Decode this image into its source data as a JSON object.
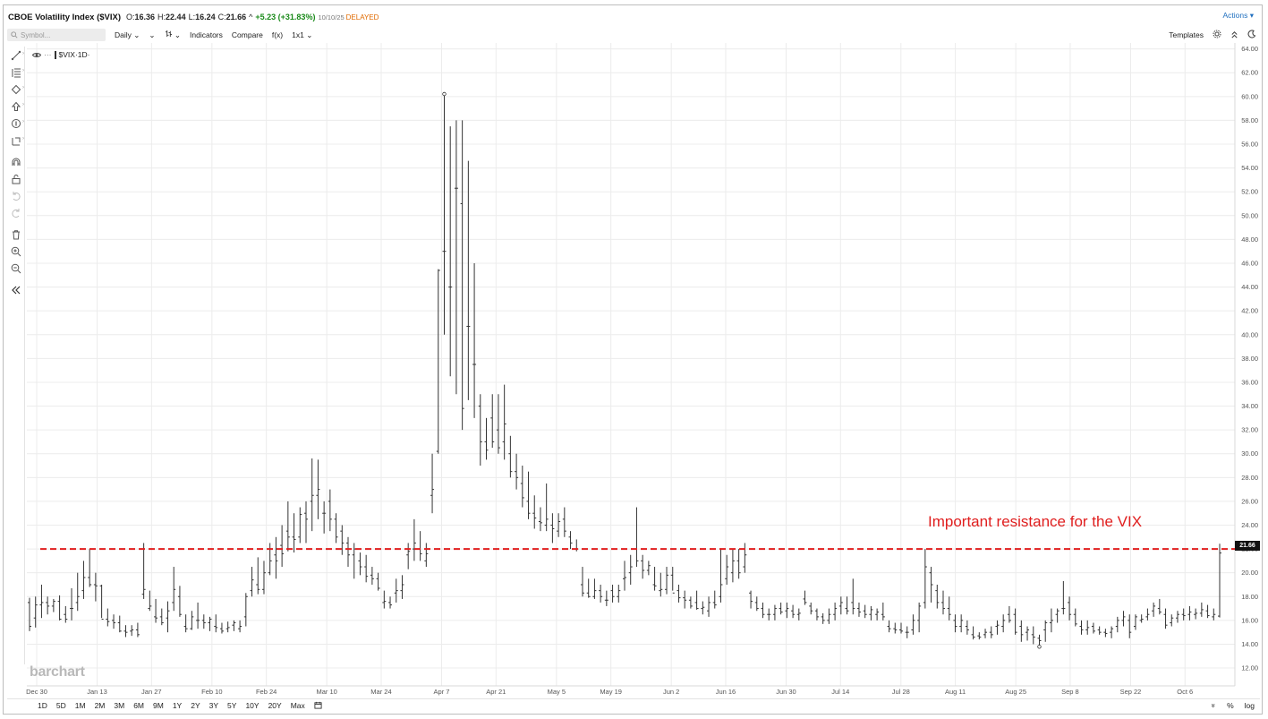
{
  "header": {
    "title": "CBOE Volatility Index ($VIX)",
    "open_label": "O:",
    "open": "16.36",
    "high_label": "H:",
    "high": "22.44",
    "low_label": "L:",
    "low": "16.24",
    "close_label": "C:",
    "close": "21.66",
    "caret": "^",
    "change": "+5.23 (+31.83%)",
    "date": "10/10/25",
    "status": "DELAYED",
    "actions_label": "Actions ▾"
  },
  "toolbar": {
    "search_placeholder": "Symbol...",
    "interval": "Daily",
    "interval_caret": "⌄",
    "chart_type_caret": "⌄",
    "bar_type_caret": "⌄",
    "indicators": "Indicators",
    "compare": "Compare",
    "fx": "f(x)",
    "layout": "1x1",
    "layout_caret": "⌄",
    "templates": "Templates"
  },
  "chart_label": {
    "symbol": "$VIX",
    "interval": "·1D·"
  },
  "watermark": "barchart",
  "annotation": "Important resistance for the VIX",
  "last_price_tag": "21.66",
  "bottombar": {
    "ranges": [
      "1D",
      "5D",
      "1M",
      "2M",
      "3M",
      "6M",
      "9M",
      "1Y",
      "2Y",
      "3Y",
      "5Y",
      "10Y",
      "20Y",
      "Max"
    ],
    "percent": "%",
    "log": "log",
    "collapse": "»"
  },
  "colors": {
    "bars": "#333333",
    "grid": "#ececec",
    "resistance": "#e01e1e",
    "change": "#1a8a1a",
    "delayed": "#e06a00",
    "accent": "#1f6fbf"
  },
  "icons": [
    "eye-icon",
    "search-icon",
    "gear-icon",
    "moon-icon",
    "calendar-icon",
    "magnet-icon",
    "lock-icon",
    "trash-icon",
    "zoom-in-icon",
    "zoom-out-icon",
    "undo-icon",
    "redo-icon"
  ],
  "chart_data": {
    "type": "bar",
    "style": "OHLC",
    "symbol": "$VIX",
    "y_ticks": [
      "12.00",
      "14.00",
      "16.00",
      "18.00",
      "20.00",
      "22.00",
      "24.00",
      "26.00",
      "28.00",
      "30.00",
      "32.00",
      "34.00",
      "36.00",
      "38.00",
      "40.00",
      "42.00",
      "44.00",
      "46.00",
      "48.00",
      "50.00",
      "52.00",
      "54.00",
      "56.00",
      "58.00",
      "60.00",
      "62.00",
      "64.00"
    ],
    "ylim": [
      10.5,
      64.5
    ],
    "x_ticks": [
      "Dec 30",
      "Jan 13",
      "Jan 27",
      "Feb 10",
      "Feb 24",
      "Mar 10",
      "Mar 24",
      "Apr 7",
      "Apr 21",
      "May 5",
      "May 19",
      "Jun 2",
      "Jun 16",
      "Jun 30",
      "Jul 14",
      "Jul 28",
      "Aug 11",
      "Aug 25",
      "Sep 8",
      "Sep 22",
      "Oct 6"
    ],
    "resistance_level": 22.0,
    "grid": true,
    "ohlc": [
      [
        17.5,
        17.9,
        15.1,
        15.5
      ],
      [
        16.2,
        18.0,
        15.4,
        17.3
      ],
      [
        17.3,
        19.0,
        16.2,
        17.5
      ],
      [
        17.5,
        18.0,
        16.5,
        17.2
      ],
      [
        17.2,
        17.8,
        16.7,
        17.6
      ],
      [
        17.6,
        18.1,
        16.0,
        16.1
      ],
      [
        16.5,
        17.2,
        15.8,
        16.1
      ],
      [
        17.0,
        18.7,
        16.0,
        17.0
      ],
      [
        17.5,
        20.0,
        16.8,
        18.0
      ],
      [
        18.5,
        21.0,
        17.8,
        19.6
      ],
      [
        19.6,
        22.0,
        18.8,
        19.0
      ],
      [
        19.0,
        20.0,
        17.6,
        18.9
      ],
      [
        18.9,
        19.0,
        16.2,
        16.1
      ],
      [
        16.1,
        17.0,
        15.5,
        15.9
      ],
      [
        16.0,
        16.5,
        15.3,
        15.8
      ],
      [
        15.8,
        16.4,
        15.0,
        15.1
      ],
      [
        15.1,
        15.6,
        14.6,
        15.0
      ],
      [
        15.1,
        15.6,
        14.7,
        15.2
      ],
      [
        15.2,
        15.8,
        14.6,
        14.8
      ],
      [
        18.2,
        22.5,
        17.8,
        18.6
      ],
      [
        17.0,
        18.5,
        16.8,
        17.2
      ],
      [
        16.3,
        17.8,
        15.8,
        16.2
      ],
      [
        16.3,
        17.0,
        15.6,
        15.8
      ],
      [
        16.2,
        17.6,
        15.0,
        16.8
      ],
      [
        17.5,
        20.5,
        16.8,
        18.6
      ],
      [
        18.0,
        18.9,
        16.3,
        16.5
      ],
      [
        15.5,
        16.5,
        15.0,
        15.3
      ],
      [
        15.3,
        16.8,
        15.2,
        16.3
      ],
      [
        16.0,
        17.5,
        15.3,
        16.0
      ],
      [
        16.0,
        16.5,
        15.3,
        15.8
      ],
      [
        15.8,
        16.3,
        15.1,
        16.1
      ],
      [
        15.5,
        16.5,
        15.0,
        15.4
      ],
      [
        15.3,
        15.8,
        14.9,
        15.1
      ],
      [
        15.3,
        15.9,
        15.0,
        15.4
      ],
      [
        15.6,
        16.0,
        15.1,
        15.8
      ],
      [
        15.3,
        16.0,
        15.0,
        15.5
      ],
      [
        16.3,
        18.3,
        15.5,
        18.0
      ],
      [
        18.5,
        20.5,
        18.0,
        19.4
      ],
      [
        19.0,
        21.3,
        18.2,
        18.6
      ],
      [
        18.6,
        21.0,
        18.2,
        20.0
      ],
      [
        20.0,
        22.5,
        19.8,
        21.0
      ],
      [
        21.5,
        23.0,
        19.5,
        21.0
      ],
      [
        22.3,
        24.0,
        20.5,
        21.6
      ],
      [
        23.5,
        26.0,
        21.8,
        23.0
      ],
      [
        23.0,
        25.0,
        21.7,
        22.8
      ],
      [
        23.0,
        25.5,
        22.5,
        24.9
      ],
      [
        25.0,
        26.0,
        22.5,
        24.5
      ],
      [
        26.0,
        29.6,
        23.5,
        26.5
      ],
      [
        26.5,
        29.5,
        24.5,
        27.0
      ],
      [
        25.0,
        26.0,
        23.3,
        25.0
      ],
      [
        26.0,
        27.0,
        23.5,
        24.5
      ],
      [
        24.5,
        25.0,
        22.5,
        23.0
      ],
      [
        23.5,
        24.0,
        21.5,
        22.5
      ],
      [
        22.5,
        23.0,
        20.5,
        21.5
      ],
      [
        21.5,
        22.5,
        19.5,
        22.0
      ],
      [
        21.0,
        21.7,
        19.8,
        20.5
      ],
      [
        20.5,
        21.5,
        19.2,
        19.7
      ],
      [
        19.8,
        20.5,
        19.0,
        19.5
      ],
      [
        19.5,
        20.0,
        18.5,
        18.7
      ],
      [
        17.5,
        18.5,
        17.0,
        17.6
      ],
      [
        17.5,
        18.0,
        17.0,
        17.3
      ],
      [
        18.3,
        19.5,
        17.5,
        18.5
      ],
      [
        18.5,
        19.8,
        17.8,
        19.0
      ],
      [
        21.5,
        22.5,
        20.3,
        21.8
      ],
      [
        22.0,
        24.5,
        21.0,
        22.5
      ],
      [
        22.0,
        23.5,
        21.0,
        21.6
      ],
      [
        21.0,
        22.5,
        20.5,
        21.6
      ],
      [
        26.5,
        30.0,
        25.0,
        27.0
      ],
      [
        30.2,
        45.5,
        30.0,
        45.4
      ],
      [
        47.0,
        60.1,
        40.0,
        47.0
      ],
      [
        44.0,
        57.5,
        36.5,
        44.0
      ],
      [
        52.3,
        58.0,
        35.0,
        52.3
      ],
      [
        51.0,
        58.0,
        32.0,
        33.8
      ],
      [
        40.7,
        54.6,
        34.5,
        40.7
      ],
      [
        37.5,
        46.0,
        33.0,
        37.5
      ],
      [
        34.0,
        35.0,
        29.0,
        31.0
      ],
      [
        31.0,
        33.0,
        29.5,
        30.3
      ],
      [
        33.0,
        35.0,
        30.5,
        31.0
      ],
      [
        32.0,
        35.0,
        30.0,
        30.5
      ],
      [
        31.0,
        35.8,
        29.5,
        32.5
      ],
      [
        30.0,
        31.5,
        28.0,
        28.5
      ],
      [
        28.5,
        30.0,
        27.0,
        28.0
      ],
      [
        27.5,
        29.0,
        25.5,
        26.3
      ],
      [
        26.0,
        28.5,
        24.5,
        25.0
      ],
      [
        25.0,
        26.5,
        23.7,
        24.6
      ],
      [
        24.3,
        25.5,
        23.5,
        24.2
      ],
      [
        24.0,
        27.5,
        23.5,
        24.5
      ],
      [
        24.0,
        25.0,
        22.5,
        23.7
      ],
      [
        23.5,
        25.0,
        23.0,
        24.3
      ],
      [
        24.5,
        25.5,
        23.0,
        23.5
      ],
      [
        23.0,
        23.5,
        22.0,
        22.5
      ],
      [
        22.0,
        22.8,
        21.8,
        22.0
      ],
      [
        19.0,
        20.5,
        18.0,
        18.3
      ],
      [
        18.3,
        19.5,
        17.9,
        18.0
      ],
      [
        18.0,
        19.5,
        17.8,
        18.5
      ],
      [
        18.5,
        19.0,
        17.5,
        18.0
      ],
      [
        17.7,
        18.5,
        17.2,
        17.7
      ],
      [
        18.5,
        19.0,
        17.5,
        18.0
      ],
      [
        18.0,
        19.0,
        17.5,
        18.5
      ],
      [
        19.5,
        21.0,
        18.5,
        19.6
      ],
      [
        20.0,
        21.5,
        19.0,
        20.5
      ],
      [
        22.0,
        25.5,
        20.5,
        21.0
      ],
      [
        21.0,
        21.5,
        19.5,
        20.2
      ],
      [
        20.2,
        21.0,
        19.8,
        20.6
      ],
      [
        19.0,
        20.5,
        18.5,
        18.9
      ],
      [
        18.5,
        20.0,
        18.0,
        18.6
      ],
      [
        18.6,
        20.5,
        18.2,
        19.8
      ],
      [
        19.8,
        20.5,
        18.5,
        18.3
      ],
      [
        18.5,
        19.0,
        17.5,
        17.9
      ],
      [
        17.9,
        18.5,
        17.0,
        17.7
      ],
      [
        17.7,
        18.0,
        17.0,
        17.2
      ],
      [
        17.5,
        18.5,
        16.9,
        17.0
      ],
      [
        17.0,
        17.6,
        16.5,
        17.1
      ],
      [
        16.8,
        18.0,
        16.3,
        17.5
      ],
      [
        17.5,
        18.5,
        17.0,
        17.3
      ],
      [
        18.0,
        22.0,
        17.5,
        19.0
      ],
      [
        19.5,
        21.5,
        19.0,
        20.5
      ],
      [
        20.0,
        22.0,
        19.2,
        21.0
      ],
      [
        21.0,
        22.0,
        19.5,
        20.0
      ],
      [
        20.5,
        22.5,
        20.0,
        21.5
      ],
      [
        18.3,
        18.5,
        17.0,
        17.6
      ],
      [
        17.5,
        18.0,
        16.8,
        17.0
      ],
      [
        17.0,
        17.5,
        16.2,
        16.5
      ],
      [
        16.5,
        17.0,
        16.0,
        16.5
      ],
      [
        16.5,
        17.3,
        16.0,
        17.0
      ],
      [
        17.0,
        17.5,
        16.5,
        16.7
      ],
      [
        16.8,
        17.5,
        16.2,
        17.0
      ],
      [
        16.8,
        17.3,
        16.2,
        16.5
      ],
      [
        16.5,
        17.0,
        16.0,
        16.6
      ],
      [
        17.8,
        18.5,
        17.3,
        17.5
      ],
      [
        17.2,
        17.5,
        16.5,
        16.8
      ],
      [
        16.8,
        17.0,
        16.0,
        16.3
      ],
      [
        16.3,
        16.6,
        15.7,
        16.0
      ],
      [
        16.0,
        17.0,
        15.7,
        16.5
      ],
      [
        16.5,
        17.5,
        16.0,
        17.0
      ],
      [
        17.2,
        18.0,
        16.5,
        17.5
      ],
      [
        17.0,
        18.0,
        16.5,
        16.8
      ],
      [
        17.5,
        19.5,
        16.5,
        17.0
      ],
      [
        17.0,
        17.5,
        16.3,
        16.7
      ],
      [
        16.8,
        17.3,
        16.2,
        16.5
      ],
      [
        16.5,
        17.2,
        16.0,
        16.9
      ],
      [
        16.5,
        17.0,
        16.0,
        16.7
      ],
      [
        16.5,
        17.5,
        16.0,
        16.3
      ],
      [
        15.5,
        16.0,
        15.0,
        15.3
      ],
      [
        15.3,
        15.8,
        14.9,
        15.2
      ],
      [
        15.2,
        15.8,
        14.9,
        15.1
      ],
      [
        15.0,
        15.5,
        14.5,
        15.0
      ],
      [
        15.2,
        16.5,
        14.8,
        16.0
      ],
      [
        16.0,
        17.5,
        15.0,
        17.2
      ],
      [
        17.5,
        22.0,
        17.0,
        20.5
      ],
      [
        20.0,
        20.5,
        17.5,
        19.0
      ],
      [
        18.5,
        19.0,
        17.0,
        17.5
      ],
      [
        17.5,
        18.5,
        16.5,
        17.0
      ],
      [
        17.0,
        18.0,
        16.0,
        16.5
      ],
      [
        16.0,
        16.5,
        15.0,
        15.5
      ],
      [
        15.5,
        16.5,
        15.0,
        16.0
      ],
      [
        15.5,
        16.0,
        14.8,
        15.2
      ],
      [
        14.8,
        15.5,
        14.4,
        14.6
      ],
      [
        14.7,
        15.0,
        14.4,
        14.6
      ],
      [
        14.8,
        15.3,
        14.5,
        15.0
      ],
      [
        15.0,
        15.5,
        14.5,
        14.8
      ],
      [
        15.5,
        16.0,
        14.8,
        15.6
      ],
      [
        15.5,
        16.5,
        15.0,
        16.0
      ],
      [
        16.5,
        17.2,
        15.8,
        16.0
      ],
      [
        16.5,
        17.0,
        14.8,
        15.0
      ],
      [
        15.5,
        16.0,
        14.2,
        14.8
      ],
      [
        15.0,
        15.5,
        14.3,
        15.2
      ],
      [
        14.8,
        15.5,
        14.0,
        14.6
      ],
      [
        14.5,
        14.8,
        13.9,
        14.3
      ],
      [
        15.2,
        16.0,
        14.2,
        15.8
      ],
      [
        15.8,
        17.0,
        15.0,
        16.0
      ],
      [
        16.5,
        17.0,
        15.8,
        16.8
      ],
      [
        17.0,
        19.3,
        16.5,
        17.0
      ],
      [
        17.5,
        18.0,
        16.0,
        16.5
      ],
      [
        16.5,
        17.0,
        15.5,
        15.7
      ],
      [
        15.5,
        16.0,
        14.8,
        15.2
      ],
      [
        15.2,
        16.0,
        14.8,
        15.4
      ],
      [
        15.5,
        15.8,
        14.9,
        15.1
      ],
      [
        15.2,
        15.5,
        14.8,
        15.0
      ],
      [
        15.0,
        15.3,
        14.6,
        14.9
      ],
      [
        15.0,
        15.5,
        14.5,
        15.3
      ],
      [
        15.5,
        16.3,
        15.0,
        16.0
      ],
      [
        16.0,
        16.8,
        15.5,
        16.3
      ],
      [
        16.0,
        16.5,
        14.5,
        15.0
      ],
      [
        15.5,
        16.5,
        15.2,
        16.3
      ],
      [
        16.0,
        16.5,
        15.8,
        16.1
      ],
      [
        16.3,
        17.0,
        16.0,
        16.5
      ],
      [
        16.8,
        17.5,
        16.3,
        17.2
      ],
      [
        17.0,
        17.8,
        16.5,
        16.7
      ],
      [
        16.5,
        17.0,
        15.3,
        15.6
      ],
      [
        15.8,
        16.5,
        15.5,
        16.2
      ],
      [
        16.2,
        16.8,
        15.8,
        16.5
      ],
      [
        16.5,
        17.0,
        16.0,
        16.4
      ],
      [
        16.5,
        17.2,
        16.0,
        16.7
      ],
      [
        16.5,
        17.0,
        16.1,
        16.6
      ],
      [
        16.6,
        17.5,
        16.3,
        16.9
      ],
      [
        16.8,
        17.3,
        16.2,
        16.4
      ],
      [
        16.3,
        17.0,
        16.0,
        16.5
      ],
      [
        16.36,
        22.44,
        16.24,
        21.66
      ]
    ]
  }
}
